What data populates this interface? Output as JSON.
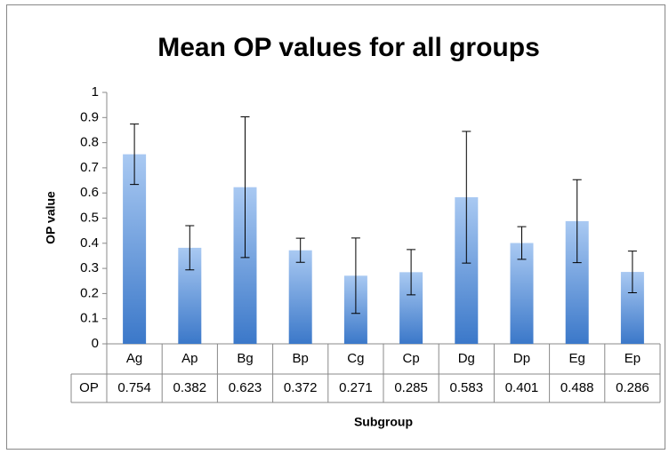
{
  "chart_data": {
    "type": "bar",
    "title": "Mean OP values for all groups",
    "x_label": "Subgroup",
    "y_label": "OP value",
    "categories": [
      "Ag",
      "Ap",
      "Bg",
      "Bp",
      "Cg",
      "Cp",
      "Dg",
      "Dp",
      "Eg",
      "Ep"
    ],
    "series": [
      {
        "name": "OP",
        "color": "#4a86d0",
        "values": [
          0.754,
          0.382,
          0.623,
          0.372,
          0.271,
          0.285,
          0.583,
          0.401,
          0.488,
          0.286
        ],
        "errors": [
          0.12,
          0.088,
          0.28,
          0.048,
          0.15,
          0.09,
          0.262,
          0.065,
          0.165,
          0.083
        ]
      }
    ],
    "ylim": [
      0,
      1
    ],
    "yticks": [
      0,
      0.1,
      0.2,
      0.3,
      0.4,
      0.5,
      0.6,
      0.7,
      0.8,
      0.9,
      1
    ],
    "data_table": true
  }
}
